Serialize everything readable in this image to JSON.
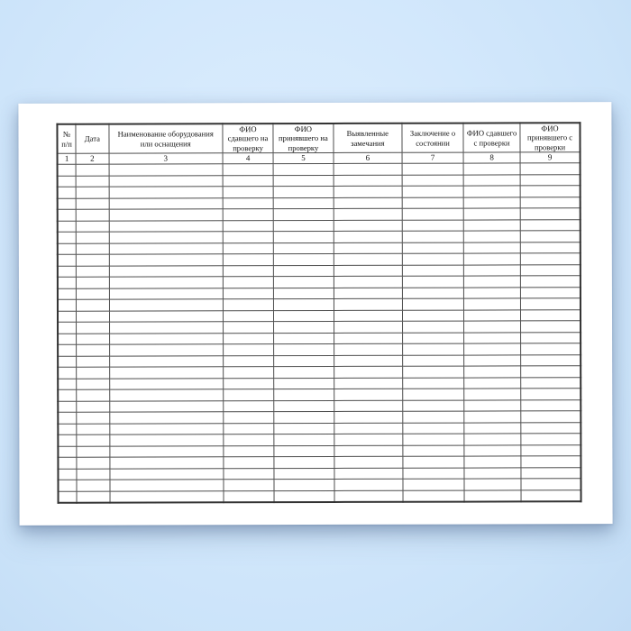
{
  "background": {
    "top_color": "#ddeefe",
    "bottom_color": "#c2dcf5"
  },
  "page": {
    "color": "#ffffff",
    "description": "blank-journal-form-sheet"
  },
  "table": {
    "grid_color": "#4e4e4e",
    "outer_border_color": "#333333",
    "empty_row_count": 30,
    "columns": [
      {
        "number": "1",
        "label": "№ п/п",
        "width_pct": 3.55
      },
      {
        "number": "2",
        "label": "Дата",
        "width_pct": 6.3
      },
      {
        "number": "3",
        "label": "Наименование оборудования или оснащения",
        "width_pct": 21.76
      },
      {
        "number": "4",
        "label": "ФИО сдавшего на проверку",
        "width_pct": 9.72
      },
      {
        "number": "5",
        "label": "ФИО принявшего на проверку",
        "width_pct": 11.46
      },
      {
        "number": "6",
        "label": "Выявленные замечания",
        "width_pct": 13.17
      },
      {
        "number": "7",
        "label": "Заключение о состоянии",
        "width_pct": 11.73
      },
      {
        "number": "8",
        "label": "ФИО сдавшего с проверки",
        "width_pct": 10.87
      },
      {
        "number": "9",
        "label": "ФИО принявшего с проверки",
        "width_pct": 11.44
      }
    ]
  }
}
